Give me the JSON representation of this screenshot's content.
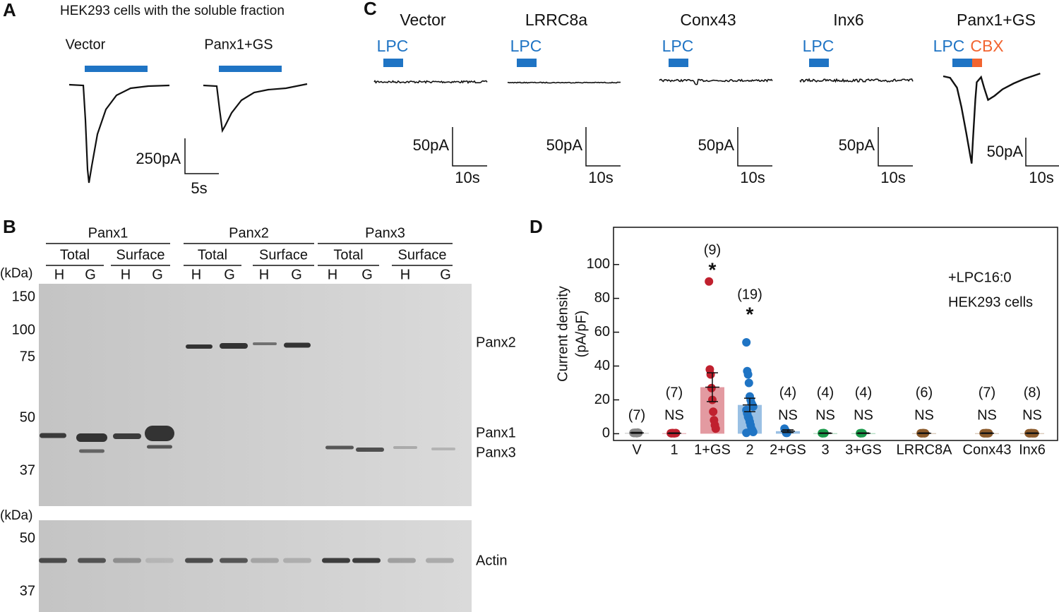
{
  "panel_a": {
    "label": "A",
    "title": "HEK293 cells with the soluble fraction",
    "traces": [
      "Vector",
      "Panx1+GS"
    ],
    "scale_current": "250pA",
    "scale_time": "5s"
  },
  "panel_b": {
    "label": "B",
    "kda_label": "(kDa)",
    "groups": [
      "Panx1",
      "Panx2",
      "Panx3"
    ],
    "fractions": [
      "Total",
      "Surface"
    ],
    "lanes": [
      "H",
      "G"
    ],
    "markers_top": [
      150,
      100,
      75,
      50,
      37
    ],
    "markers_bottom": [
      50,
      37
    ],
    "bands_top": [
      "Panx2",
      "Panx1",
      "Panx3"
    ],
    "band_bottom": "Actin"
  },
  "panel_c": {
    "label": "C",
    "traces": [
      "Vector",
      "LRRC8a",
      "Conx43",
      "Inx6",
      "Panx1+GS"
    ],
    "stimulus": "LPC",
    "blocker": "CBX",
    "scale_current": "50pA",
    "scale_time": "10s"
  },
  "chart_data": {
    "type": "bar",
    "panel_label": "D",
    "ylabel": "Current density",
    "ylabel_unit": "(pA/pF)",
    "annotations": [
      "+LPC16:0",
      "HEK293 cells"
    ],
    "categories": [
      "V",
      "1",
      "1+GS",
      "2",
      "2+GS",
      "3",
      "3+GS",
      "LRRC8A",
      "Conx43",
      "Inx6"
    ],
    "values": [
      0.5,
      0.3,
      27.5,
      17,
      1.5,
      0.3,
      0.3,
      0.3,
      0.3,
      0.3
    ],
    "errors": [
      0.3,
      0.2,
      8.5,
      4,
      0.8,
      0.2,
      0.2,
      0.2,
      0.2,
      0.2
    ],
    "points": [
      [
        0.5,
        0.4,
        0.6,
        0.5,
        0.3,
        0.7,
        0.5
      ],
      [
        0.3,
        0.2,
        0.4,
        0.3,
        0.2,
        0.3,
        0.4
      ],
      [
        90,
        38,
        35,
        27,
        20,
        13,
        8,
        5,
        3
      ],
      [
        54,
        37,
        35,
        30,
        22,
        20,
        18,
        17,
        16,
        14,
        12,
        10,
        9,
        7,
        5,
        3,
        2,
        1,
        0.5
      ],
      [
        3,
        2,
        0.5,
        0.5
      ],
      [
        0.3,
        0.2,
        0.4,
        0.3
      ],
      [
        0.3,
        0.2,
        0.4,
        0.3
      ],
      [
        0.3,
        0.2,
        0.3,
        0.4,
        0.2,
        0.3
      ],
      [
        0.3,
        0.2,
        0.3,
        0.4,
        0.2,
        0.3,
        0.3
      ],
      [
        0.3,
        0.2,
        0.3,
        0.4,
        0.2,
        0.3,
        0.3,
        0.2
      ]
    ],
    "n_labels": [
      "(7)",
      "(7)",
      "(9)",
      "(19)",
      "(4)",
      "(4)",
      "(4)",
      "(6)",
      "(7)",
      "(8)"
    ],
    "sig_labels": [
      null,
      "NS",
      "*",
      "*",
      "NS",
      "NS",
      "NS",
      "NS",
      "NS",
      "NS"
    ],
    "colors": [
      "#8a8a8a",
      "#c0202e",
      "#c0202e",
      "#1f74c4",
      "#1f74c4",
      "#1a9a4a",
      "#1a9a4a",
      "#8b5a2b",
      "#8b5a2b",
      "#8b5a2b"
    ],
    "ylim": [
      -4,
      122
    ],
    "yticks": [
      0,
      20,
      40,
      60,
      80,
      100
    ]
  }
}
